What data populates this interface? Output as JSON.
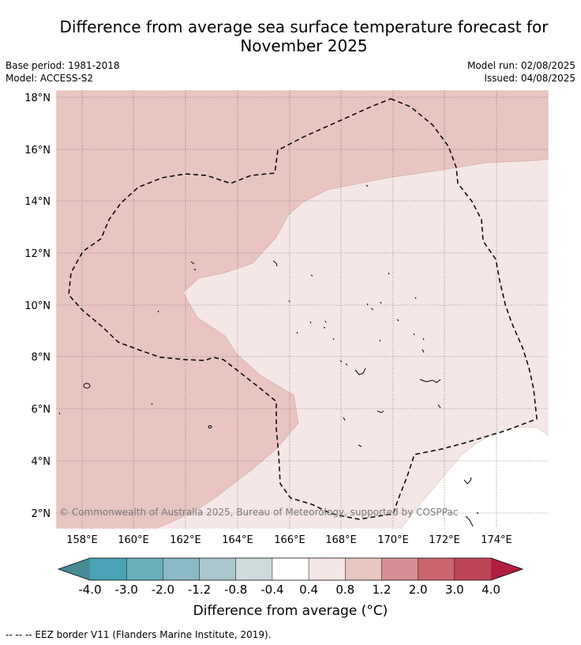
{
  "title_line1": "Difference from average sea surface temperature forecast for",
  "title_line2": "November 2025",
  "meta_left": [
    "Base period: 1981-2018",
    "Model: ACCESS-S2"
  ],
  "meta_right": [
    "Model run: 02/08/2025",
    "Issued: 04/08/2025"
  ],
  "copyright": "© Commonwealth of Australia 2025, Bureau of Meteorology, supported by COSPPac",
  "y_ticks": [
    "18°N",
    "16°N",
    "14°N",
    "12°N",
    "10°N",
    "8°N",
    "6°N",
    "4°N",
    "2°N"
  ],
  "x_ticks": [
    "158°E",
    "160°E",
    "162°E",
    "164°E",
    "166°E",
    "168°E",
    "170°E",
    "172°E",
    "174°E"
  ],
  "colorbar": {
    "ticks": [
      "-4.0",
      "-3.0",
      "-2.0",
      "-1.2",
      "-0.8",
      "-0.4",
      "0.4",
      "0.8",
      "1.2",
      "2.0",
      "3.0",
      "4.0"
    ],
    "colors": [
      "#468a96",
      "#4aa3b5",
      "#6aaebd",
      "#8ab8c4",
      "#a9c7cc",
      "#cfdadc",
      "#ffffff",
      "#f5e7e6",
      "#e8c5c1",
      "#d88f93",
      "#c9666e",
      "#bd4656",
      "#b01e3f"
    ],
    "label": "Difference from average (°C)"
  },
  "map_colors": {
    "band_0p8_1p2": "#e8c5c1",
    "band_0p4_0p8": "#f5e7e6",
    "band_neutral": "#ffffff"
  },
  "legend_footer": "--  --  -- EEZ border V11 (Flanders Marine Institute, 2019)."
}
